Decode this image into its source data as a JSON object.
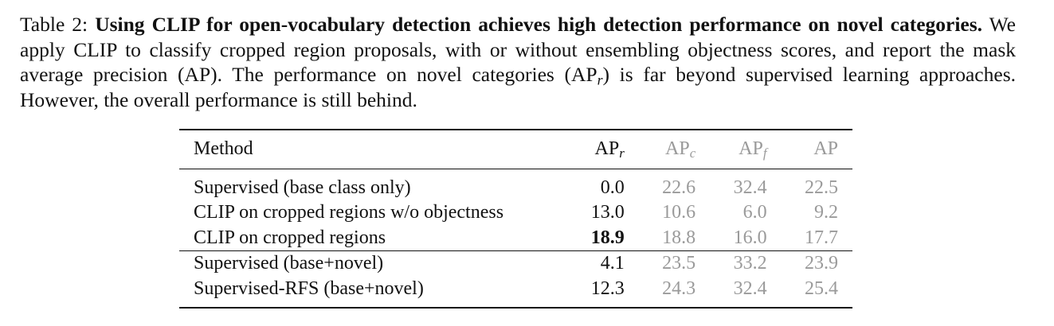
{
  "caption": {
    "label": "Table 2:",
    "title": "Using CLIP for open-vocabulary detection achieves high detection performance on novel categories.",
    "text_before_sub": "We apply CLIP to classify cropped region proposals, with or without ensembling objectness scores, and report the mask average precision (AP). The performance on novel categories (AP",
    "sub": "r",
    "text_after_sub": ") is far beyond supervised learning approaches. However, the overall performance is still behind."
  },
  "table": {
    "header": [
      {
        "base": "Method"
      },
      {
        "base": "AP",
        "sub": "r"
      },
      {
        "base": "AP",
        "sub": "c"
      },
      {
        "base": "AP",
        "sub": "f"
      },
      {
        "base": "AP"
      }
    ],
    "row_groups": [
      [
        [
          "Supervised (base class only)",
          "0.0",
          "22.6",
          "32.4",
          "22.5"
        ],
        [
          "CLIP on cropped regions w/o objectness",
          "13.0",
          "10.6",
          "6.0",
          "9.2"
        ],
        [
          "CLIP on cropped regions",
          "18.9",
          "18.8",
          "16.0",
          "17.7"
        ]
      ],
      [
        [
          "Supervised (base+novel)",
          "4.1",
          "23.5",
          "33.2",
          "23.9"
        ],
        [
          "Supervised-RFS (base+novel)",
          "12.3",
          "24.3",
          "32.4",
          "25.4"
        ]
      ]
    ]
  }
}
